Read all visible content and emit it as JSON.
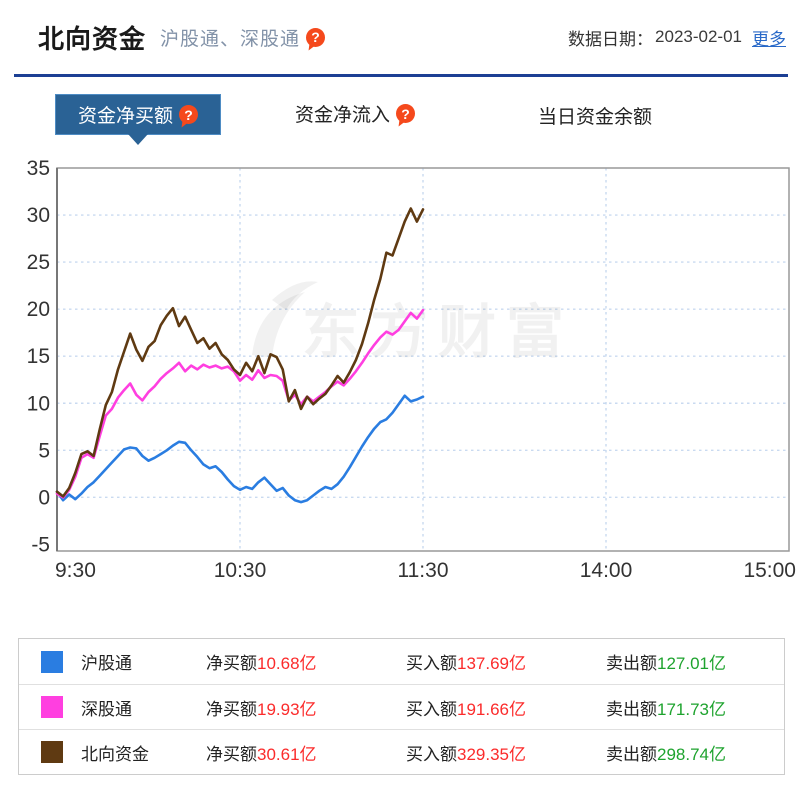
{
  "header": {
    "title": "北向资金",
    "subtitle": "沪股通、深股通",
    "date_label": "数据日期：",
    "date_value": "2023-02-01",
    "more_link": "更多",
    "help_glyph": "?"
  },
  "tabs": [
    {
      "label": "资金净买额",
      "active": true,
      "has_help": true
    },
    {
      "label": "资金净流入",
      "active": false,
      "has_help": true
    },
    {
      "label": "当日资金余额",
      "active": false,
      "has_help": false
    }
  ],
  "chart_data": {
    "type": "line",
    "watermark": "东方财富",
    "x_ticks": [
      "9:30",
      "10:30",
      "11:30",
      "14:00",
      "15:00"
    ],
    "x_tick_minutes": [
      0,
      60,
      120,
      180,
      240
    ],
    "x_total_minutes": 240,
    "sample_interval_min": 2,
    "ylim": [
      -5,
      35
    ],
    "y_ticks": [
      -5,
      0,
      5,
      10,
      15,
      20,
      25,
      30,
      35
    ],
    "grid": true,
    "legend_position": "bottom-table",
    "series": [
      {
        "name": "沪股通",
        "color": "#2a7de1",
        "values": [
          0.6,
          -0.3,
          0.3,
          -0.2,
          0.4,
          1.1,
          1.6,
          2.3,
          3.0,
          3.7,
          4.4,
          5.1,
          5.3,
          5.2,
          4.4,
          3.9,
          4.2,
          4.6,
          5.0,
          5.5,
          5.9,
          5.8,
          5.0,
          4.3,
          3.5,
          3.1,
          3.3,
          2.7,
          1.9,
          1.2,
          0.8,
          1.1,
          0.9,
          1.6,
          2.1,
          1.4,
          0.7,
          1.0,
          0.2,
          -0.3,
          -0.5,
          -0.3,
          0.2,
          0.7,
          1.1,
          0.9,
          1.4,
          2.2,
          3.2,
          4.3,
          5.4,
          6.4,
          7.3,
          8.0,
          8.3,
          9.0,
          9.9,
          10.8,
          10.2,
          10.4,
          10.7
        ]
      },
      {
        "name": "深股通",
        "color": "#ff3fe0",
        "values": [
          0.4,
          0.0,
          0.8,
          2.2,
          4.2,
          4.6,
          4.2,
          6.5,
          8.7,
          9.4,
          10.6,
          11.4,
          12.1,
          10.9,
          10.3,
          11.2,
          11.8,
          12.6,
          13.2,
          13.7,
          14.3,
          13.4,
          14.0,
          13.6,
          14.1,
          13.8,
          14.0,
          13.7,
          13.9,
          13.4,
          12.4,
          13.0,
          12.5,
          13.5,
          12.7,
          13.0,
          12.9,
          12.4,
          10.3,
          10.9,
          9.9,
          10.7,
          10.2,
          10.7,
          11.2,
          11.8,
          12.3,
          11.9,
          12.6,
          13.4,
          14.3,
          15.3,
          16.2,
          17.0,
          17.6,
          17.3,
          17.8,
          18.7,
          19.6,
          19.0,
          19.9
        ]
      },
      {
        "name": "北向资金",
        "color": "#5f3a12",
        "values": [
          0.6,
          0.1,
          1.0,
          2.6,
          4.6,
          4.9,
          4.4,
          7.2,
          9.8,
          11.2,
          13.6,
          15.5,
          17.4,
          15.7,
          14.5,
          16.0,
          16.6,
          18.3,
          19.3,
          20.1,
          18.2,
          19.2,
          17.8,
          16.4,
          16.9,
          15.8,
          16.4,
          15.2,
          14.6,
          13.6,
          13.0,
          14.3,
          13.4,
          15.0,
          13.2,
          15.2,
          14.9,
          13.6,
          10.2,
          11.4,
          9.4,
          10.7,
          9.9,
          10.5,
          11.0,
          11.9,
          12.9,
          12.2,
          13.3,
          14.6,
          16.3,
          18.5,
          21.0,
          23.2,
          26.0,
          25.7,
          27.5,
          29.3,
          30.7,
          29.3,
          30.6
        ]
      }
    ]
  },
  "legend_table": {
    "rows": [
      {
        "name": "沪股通",
        "swatch": "#2a7de1",
        "net_label": "净买额",
        "net_value": "10.68亿",
        "buy_label": "买入额",
        "buy_value": "137.69亿",
        "sell_label": "卖出额",
        "sell_value": "127.01亿"
      },
      {
        "name": "深股通",
        "swatch": "#ff3fe0",
        "net_label": "净买额",
        "net_value": "19.93亿",
        "buy_label": "买入额",
        "buy_value": "191.66亿",
        "sell_label": "卖出额",
        "sell_value": "171.73亿"
      },
      {
        "name": "北向资金",
        "swatch": "#5f3a12",
        "net_label": "净买额",
        "net_value": "30.61亿",
        "buy_label": "买入额",
        "buy_value": "329.35亿",
        "sell_label": "卖出额",
        "sell_value": "298.74亿"
      }
    ]
  },
  "colors": {
    "divider": "#1c3f94",
    "active_tab_bg": "#2a6295",
    "active_tab_border": "#4e8cc4",
    "help_icon_bg": "#f5491c",
    "grid": "#c9daf0",
    "axis_border": "#999999",
    "axis_text": "#333333",
    "value_up_red": "#fb2b2b",
    "value_down_green": "#1ea32e",
    "more_link": "#2969c8"
  }
}
